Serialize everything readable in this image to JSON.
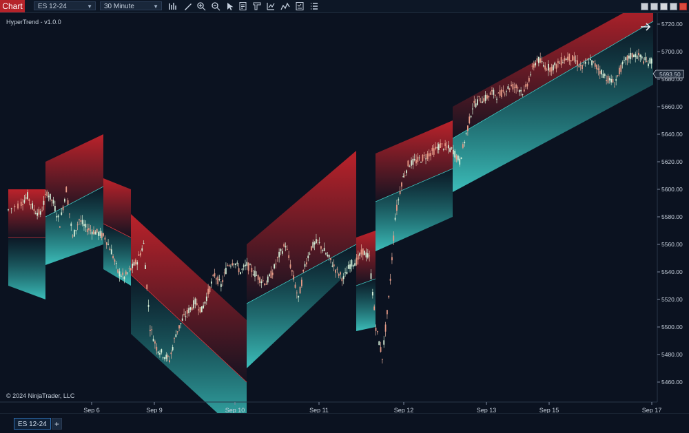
{
  "toolbar": {
    "chart_tab": "Chart",
    "instrument": "ES 12-24",
    "interval": "30 Minute",
    "icons": [
      "bar-type-icon",
      "draw-tools-icon",
      "zoom-in-icon",
      "zoom-out-icon",
      "pointer-icon",
      "data-box-icon",
      "properties-icon",
      "indicators-icon",
      "strategies-icon",
      "templates-icon",
      "more-icon"
    ]
  },
  "indicator_label": "HyperTrend - v1.0.0",
  "copyright": "© 2024 NinjaTrader, LLC",
  "price_badge": "5693.50",
  "bottom": {
    "instrument_tab": "ES 12-24",
    "add_tab": "+"
  },
  "colors": {
    "up": "#3fc7c2",
    "down": "#d9343d",
    "background": "#0b1220",
    "badge": "#1f2a3a"
  },
  "chart_data": {
    "type": "candlestick-with-bands",
    "x_ticks": [
      "Sep 6",
      "Sep 9",
      "Sep 10",
      "Sep 11",
      "Sep 12",
      "Sep 13",
      "Sep 15",
      "Sep 17"
    ],
    "y_ticks": [
      "5720.00",
      "5700.00",
      "5680.00",
      "5660.00",
      "5640.00",
      "5620.00",
      "5600.00",
      "5580.00",
      "5560.00",
      "5540.00",
      "5520.00",
      "5500.00",
      "5480.00",
      "5460.00"
    ],
    "ylim": [
      5455,
      5730
    ],
    "price_path": [
      [
        0,
        5585
      ],
      [
        2,
        5590
      ],
      [
        3,
        5595
      ],
      [
        4,
        5585
      ],
      [
        5,
        5582
      ],
      [
        6,
        5598
      ],
      [
        7,
        5590
      ],
      [
        8,
        5575
      ],
      [
        9,
        5600
      ],
      [
        10,
        5565
      ],
      [
        11,
        5578
      ],
      [
        12,
        5572
      ],
      [
        13,
        5570
      ],
      [
        14,
        5568
      ],
      [
        15,
        5565
      ],
      [
        16,
        5555
      ],
      [
        17,
        5540
      ],
      [
        18,
        5536
      ],
      [
        19,
        5542
      ],
      [
        20,
        5548
      ],
      [
        21,
        5560
      ],
      [
        22,
        5500
      ],
      [
        23,
        5485
      ],
      [
        24,
        5480
      ],
      [
        25,
        5476
      ],
      [
        26,
        5495
      ],
      [
        27,
        5505
      ],
      [
        28,
        5512
      ],
      [
        29,
        5518
      ],
      [
        30,
        5512
      ],
      [
        31,
        5525
      ],
      [
        32,
        5538
      ],
      [
        33,
        5530
      ],
      [
        34,
        5545
      ],
      [
        35,
        5548
      ],
      [
        36,
        5540
      ],
      [
        37,
        5545
      ],
      [
        38,
        5540
      ],
      [
        39,
        5535
      ],
      [
        40,
        5532
      ],
      [
        41,
        5540
      ],
      [
        42,
        5552
      ],
      [
        43,
        5560
      ],
      [
        44,
        5540
      ],
      [
        45,
        5520
      ],
      [
        46,
        5545
      ],
      [
        47,
        5558
      ],
      [
        48,
        5562
      ],
      [
        49,
        5555
      ],
      [
        50,
        5548
      ],
      [
        51,
        5540
      ],
      [
        52,
        5535
      ],
      [
        53,
        5545
      ],
      [
        54,
        5548
      ],
      [
        55,
        5555
      ],
      [
        56,
        5550
      ],
      [
        57,
        5500
      ],
      [
        58,
        5478
      ],
      [
        59,
        5520
      ],
      [
        60,
        5580
      ],
      [
        61,
        5605
      ],
      [
        62,
        5618
      ],
      [
        63,
        5620
      ],
      [
        64,
        5622
      ],
      [
        65,
        5625
      ],
      [
        66,
        5628
      ],
      [
        67,
        5632
      ],
      [
        68,
        5630
      ],
      [
        69,
        5628
      ],
      [
        70,
        5620
      ],
      [
        71,
        5640
      ],
      [
        72,
        5660
      ],
      [
        73,
        5665
      ],
      [
        74,
        5666
      ],
      [
        75,
        5670
      ],
      [
        76,
        5668
      ],
      [
        77,
        5672
      ],
      [
        78,
        5675
      ],
      [
        79,
        5674
      ],
      [
        80,
        5670
      ],
      [
        81,
        5684
      ],
      [
        82,
        5695
      ],
      [
        83,
        5690
      ],
      [
        84,
        5688
      ],
      [
        85,
        5690
      ],
      [
        86,
        5694
      ],
      [
        87,
        5696
      ],
      [
        88,
        5693
      ],
      [
        89,
        5688
      ],
      [
        90,
        5694
      ],
      [
        91,
        5690
      ],
      [
        92,
        5685
      ],
      [
        93,
        5680
      ],
      [
        94,
        5677
      ],
      [
        95,
        5688
      ],
      [
        96,
        5695
      ],
      [
        97,
        5698
      ],
      [
        98,
        5696
      ],
      [
        99,
        5692
      ],
      [
        100,
        5693.5
      ]
    ]
  }
}
